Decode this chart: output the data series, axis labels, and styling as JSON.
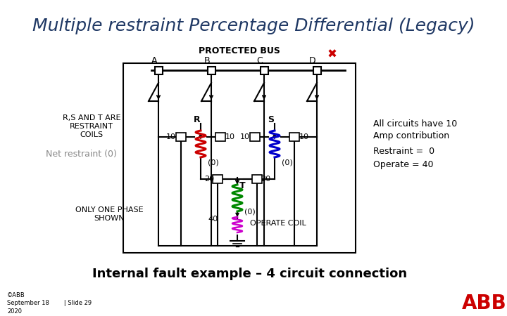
{
  "title": "Multiple restraint Percentage Differential (Legacy)",
  "title_color": "#1F3864",
  "title_fontsize": 18,
  "bg_color": "#FFFFFF",
  "protected_bus_label": "PROTECTED BUS",
  "bus_labels": [
    "A",
    "B",
    "C",
    "D"
  ],
  "left_note1": "R,S AND T ARE\nRESTRAINT\nCOILS",
  "left_note2": "Net restraint (0)",
  "left_note2_color": "#888888",
  "left_note3": "ONLY ONE PHASE\nSHOWN",
  "right_note1": "All circuits have 10\nAmp contribution",
  "right_note2": "Restraint =  0\nOperate = 40",
  "bottom_label": "Internal fault example – 4 circuit connection",
  "footer_left": "©ABB\nSeptember 18        | Slide 29\n2020",
  "x_mark_color": "#CC0000",
  "coil_R_color": "#CC0000",
  "coil_S_color": "#0000CC",
  "coil_T_color": "#008800",
  "operate_coil_color": "#CC00CC",
  "abb_red": "#CC0000"
}
